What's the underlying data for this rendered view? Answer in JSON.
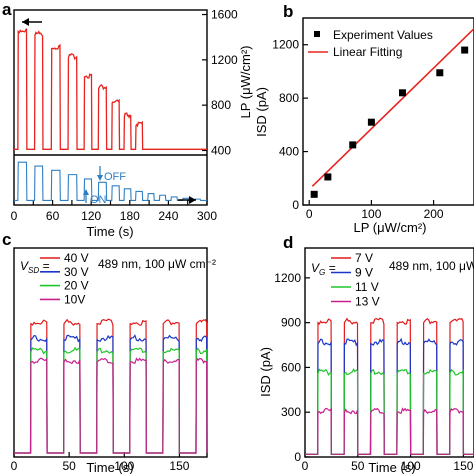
{
  "figure": {
    "panels": [
      {
        "key": "a",
        "label": "a"
      },
      {
        "key": "b",
        "label": "b"
      },
      {
        "key": "c",
        "label": "c"
      },
      {
        "key": "d",
        "label": "d"
      }
    ]
  },
  "chart_data": [
    {
      "panel": "a",
      "type": "line",
      "title": "",
      "xlabel": "Time (s)",
      "ylabel_right": "LP (μW/cm²)",
      "xlim": [
        0,
        300
      ],
      "xticks": [
        0,
        30,
        60,
        90,
        120,
        150,
        180,
        210,
        240,
        270,
        300
      ],
      "yticks_right": [
        400,
        800,
        1200,
        1600
      ],
      "ylim_right": [
        360,
        1640
      ],
      "upper_series": {
        "name": "",
        "color": "#e8231f",
        "on_intervals": [
          [
            6,
            20
          ],
          [
            32,
            45
          ],
          [
            58,
            72
          ],
          [
            84,
            98
          ],
          [
            109,
            121
          ],
          [
            131,
            144
          ],
          [
            152,
            164
          ],
          [
            171,
            182
          ],
          [
            189,
            200
          ]
        ],
        "on_levels": [
          1450,
          1420,
          1300,
          1220,
          1050,
          950,
          820,
          700,
          620
        ],
        "baseline": 410
      },
      "lower_series": {
        "name": "",
        "color": "#2f7fc4",
        "on_intervals": [
          [
            6,
            20
          ],
          [
            32,
            45
          ],
          [
            58,
            72
          ],
          [
            84,
            98
          ],
          [
            109,
            121
          ],
          [
            131,
            144
          ],
          [
            152,
            164
          ],
          [
            171,
            182
          ],
          [
            189,
            200
          ],
          [
            208,
            218
          ],
          [
            226,
            236
          ],
          [
            244,
            254
          ],
          [
            262,
            272
          ],
          [
            280,
            290
          ]
        ],
        "on_levels": [
          0.95,
          0.86,
          0.76,
          0.66,
          0.56,
          0.48,
          0.4,
          0.33,
          0.27,
          0.22,
          0.18,
          0.14,
          0.11,
          0.09
        ],
        "baseline": 0.06
      },
      "annotations": [
        {
          "text": "OFF",
          "color": "#2f7fc4"
        },
        {
          "text": "ON",
          "color": "#2f7fc4"
        }
      ]
    },
    {
      "panel": "b",
      "type": "scatter",
      "title": "",
      "xlabel": "LP (μW/cm²)",
      "ylabel": "ISD (pA)",
      "xlim": [
        -10,
        265
      ],
      "ylim": [
        0,
        1400
      ],
      "xticks": [
        0,
        100,
        200
      ],
      "yticks": [
        0,
        400,
        800,
        1200
      ],
      "series": [
        {
          "name": "Experiment Values",
          "color": "#000000",
          "points": [
            [
              8,
              80
            ],
            [
              30,
              210
            ],
            [
              70,
              450
            ],
            [
              100,
              620
            ],
            [
              150,
              840
            ],
            [
              210,
              990
            ],
            [
              250,
              1160
            ]
          ]
        },
        {
          "name": "Linear Fitting",
          "color": "#e8231f",
          "line": [
            [
              5,
              140
            ],
            [
              265,
              1320
            ]
          ]
        }
      ]
    },
    {
      "panel": "c",
      "type": "line",
      "title": "",
      "xlabel": "Time (s)",
      "xlim": [
        0,
        175
      ],
      "xticks": [
        0,
        50,
        100,
        150
      ],
      "annotation": "489 nm, 100 μW cm⁻²",
      "legend_title_main": "V",
      "legend_title_sub": "SD",
      "legend_placement": "top-left",
      "pulse_period": 30,
      "pulse_start": 15,
      "pulse_width": 15,
      "pulse_count": 6,
      "series": [
        {
          "name": "40 V",
          "color": "#e31a1c",
          "on_level": 0.64
        },
        {
          "name": "30 V",
          "color": "#1a37c9",
          "on_level": 0.56
        },
        {
          "name": "20 V",
          "color": "#22c52c",
          "on_level": 0.5
        },
        {
          "name": "10V",
          "color": "#c8208e",
          "on_level": 0.45
        }
      ]
    },
    {
      "panel": "d",
      "type": "line",
      "title": "",
      "xlabel": "Time (s)",
      "ylabel": "ISD (pA)",
      "xlim": [
        0,
        160
      ],
      "ylim": [
        0,
        1400
      ],
      "xticks": [
        0,
        50,
        100,
        150
      ],
      "yticks": [
        0,
        300,
        600,
        900,
        1200
      ],
      "annotation": "489 nm, 100 μW",
      "legend_title_main": "V",
      "legend_title_sub": "G",
      "legend_placement": "top-left",
      "pulse_period": 25,
      "pulse_start": 12,
      "pulse_width": 13,
      "pulse_count": 6,
      "series": [
        {
          "name": "7 V",
          "color": "#e31a1c",
          "on_level": 900
        },
        {
          "name": "9 V",
          "color": "#1a37c9",
          "on_level": 760
        },
        {
          "name": "11 V",
          "color": "#22c52c",
          "on_level": 560
        },
        {
          "name": "13 V",
          "color": "#c8208e",
          "on_level": 300
        }
      ]
    }
  ]
}
